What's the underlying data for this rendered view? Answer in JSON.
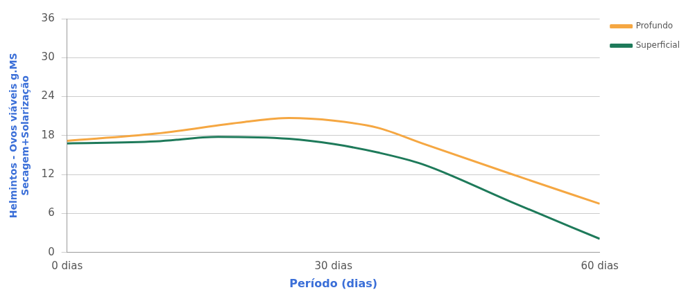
{
  "chart_data": {
    "type": "line",
    "xlabel": "Período (dias)",
    "ylabel": "Helmintos - Ovos viáveis g.MS\nSecagem+Solarização",
    "xlim": [
      0,
      60
    ],
    "xticks": [
      {
        "value": 0,
        "label": "0 dias"
      },
      {
        "value": 30,
        "label": "30 dias"
      },
      {
        "value": 60,
        "label": "60 dias"
      }
    ],
    "ylim": [
      0,
      36
    ],
    "yticks": [
      0,
      6,
      12,
      18,
      24,
      30,
      36
    ],
    "grid": "y",
    "legend": "top right",
    "marker": "none",
    "line_style": "solid",
    "series": [
      {
        "name": "Profundo",
        "color": "#f5a742",
        "x": [
          0,
          10,
          20,
          25,
          30,
          35,
          40,
          50,
          60
        ],
        "values": [
          17.2,
          18.3,
          20.1,
          20.7,
          20.3,
          19.2,
          16.8,
          12.1,
          7.5
        ]
      },
      {
        "name": "Superficial",
        "color": "#1e7a5a",
        "x": [
          0,
          10,
          17,
          25,
          30,
          35,
          40,
          50,
          60
        ],
        "values": [
          16.8,
          17.1,
          17.8,
          17.5,
          16.7,
          15.4,
          13.6,
          7.8,
          2.1
        ]
      }
    ]
  }
}
